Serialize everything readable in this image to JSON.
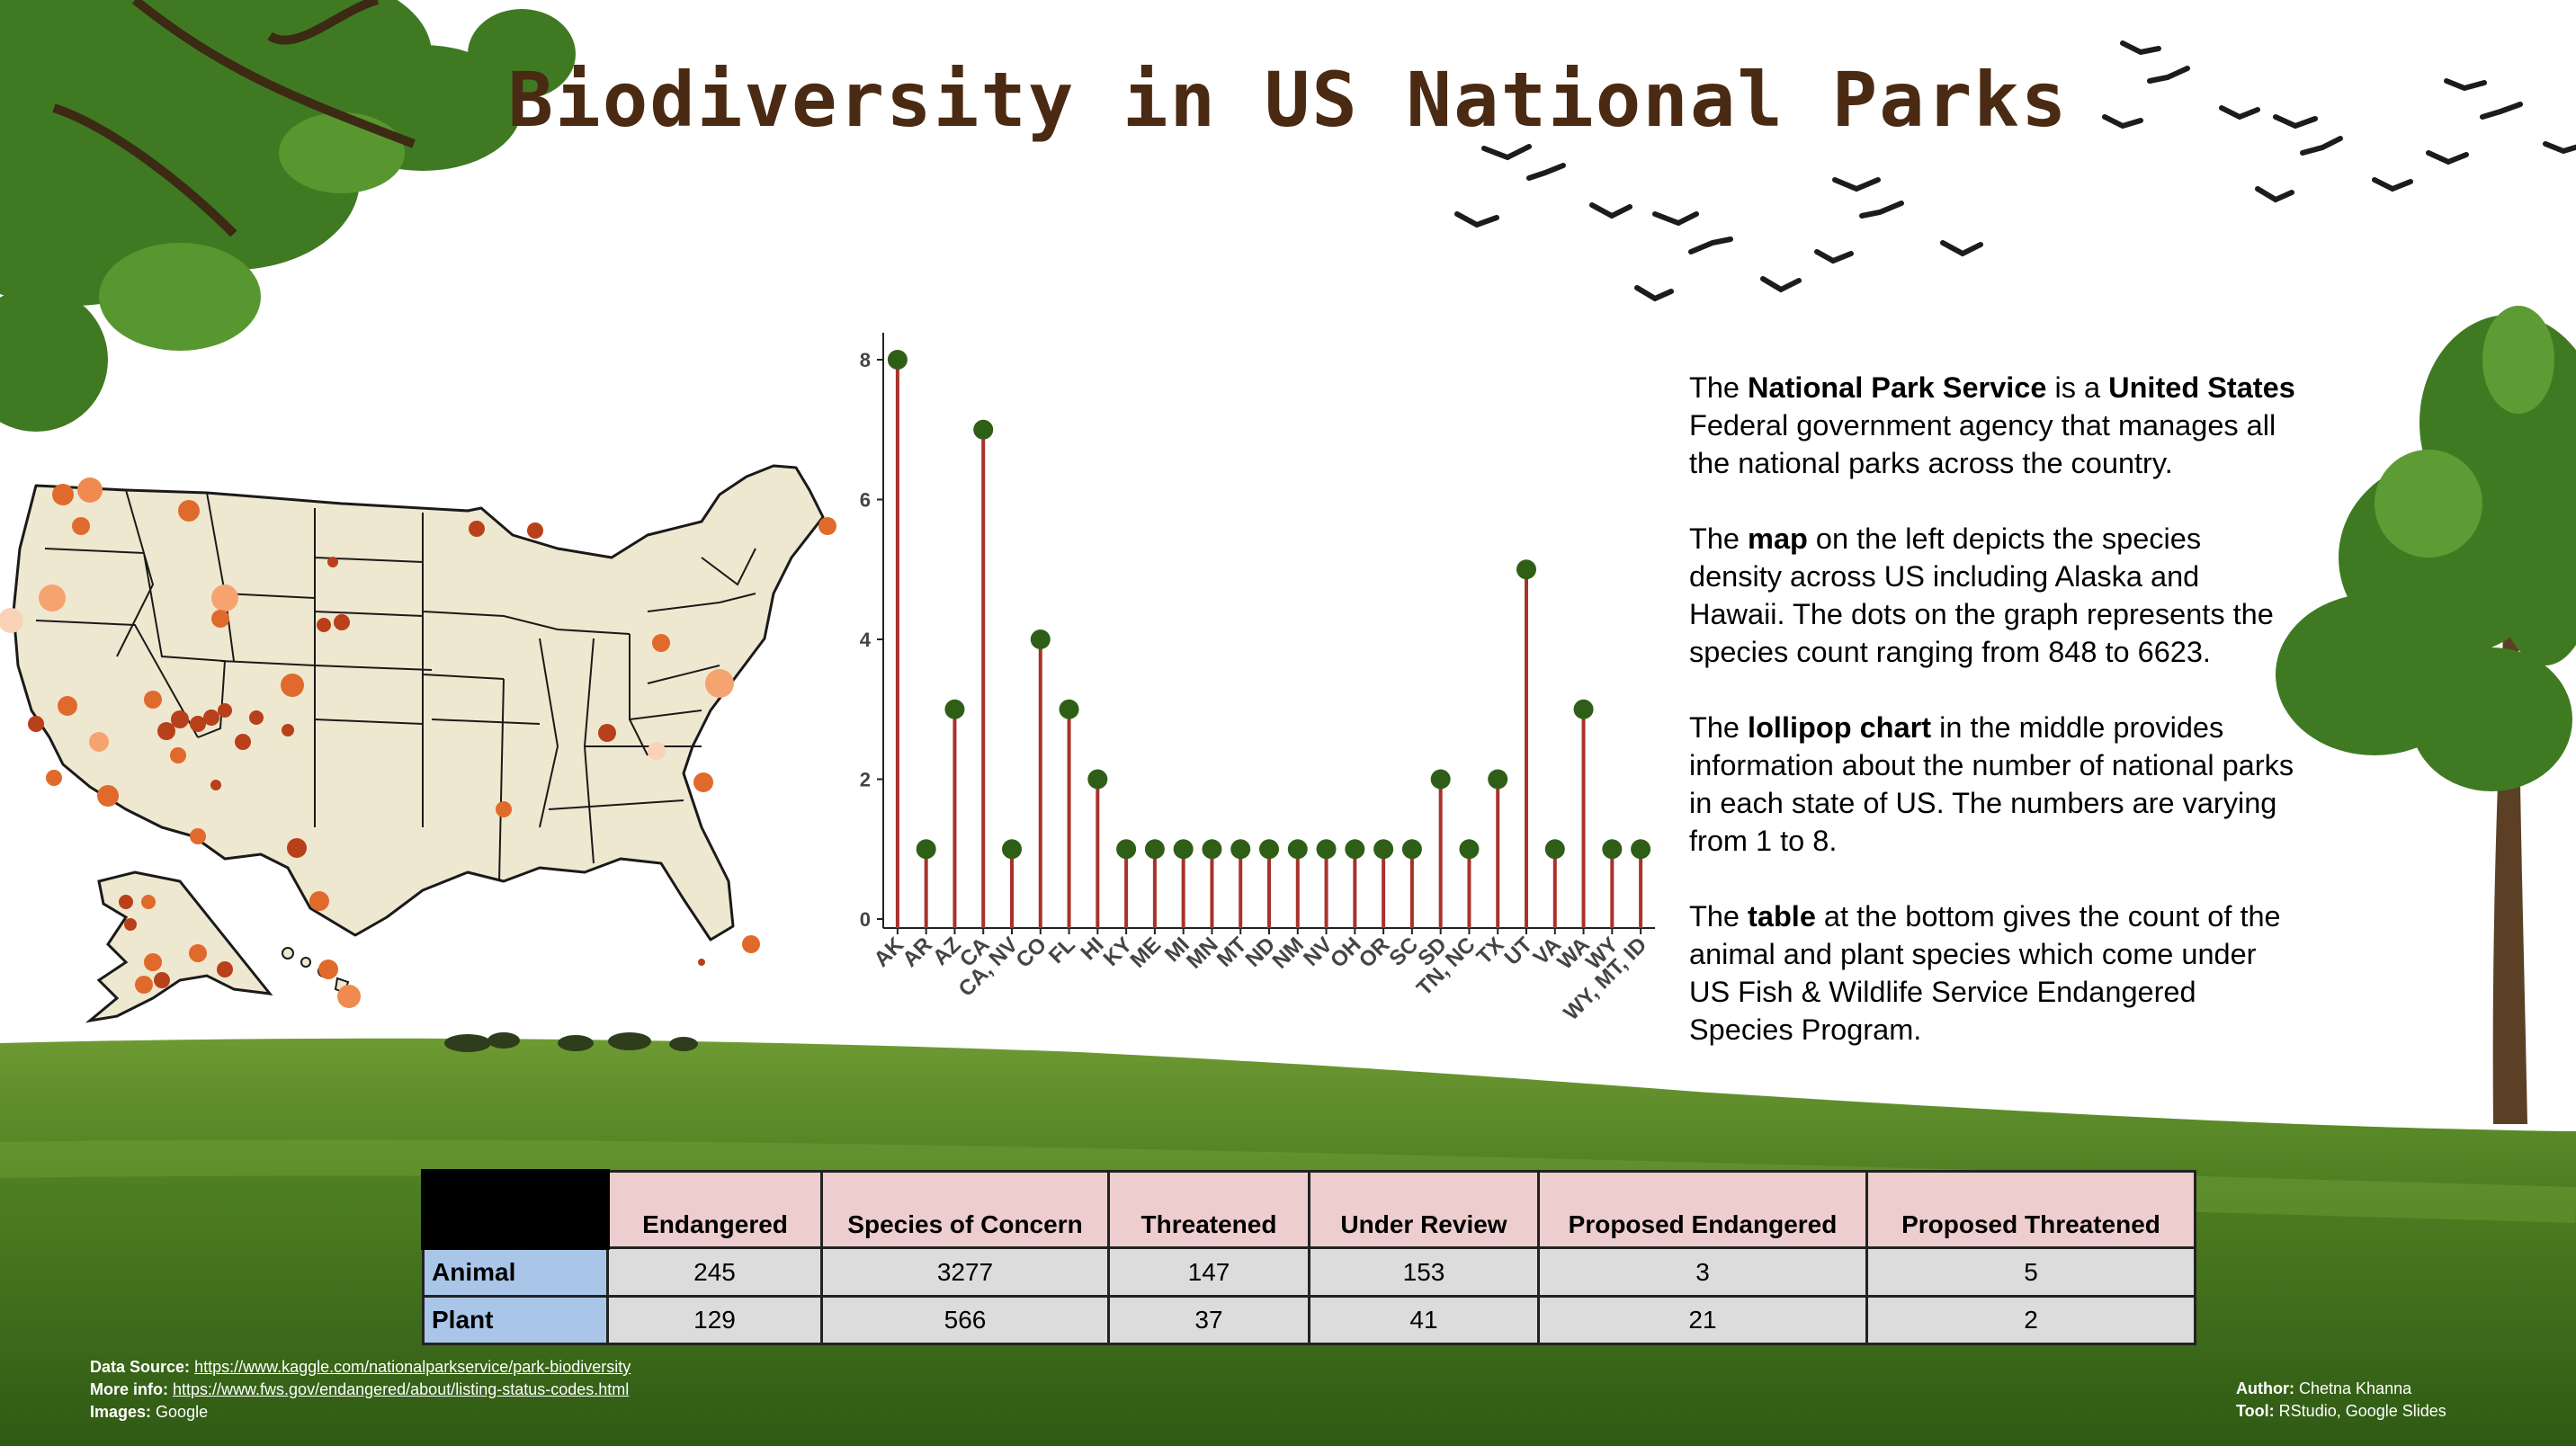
{
  "title": "Biodiversity in US National Parks",
  "description": {
    "p1": {
      "t1": "The ",
      "b1": "National Park Service",
      "t2": " is a ",
      "b2": "United States",
      "t3": " Federal government agency that manages all the national parks across the country."
    },
    "p2": {
      "t1": "The ",
      "b1": "map",
      "t2": " on the left depicts the species density across US including Alaska and Hawaii. The dots on the graph represents the species count ranging from 848 to 6623."
    },
    "p3": {
      "t1": "The ",
      "b1": "lollipop chart",
      "t2": " in the middle provides information about the number of national parks in each state of US. The numbers are varying from 1 to 8."
    },
    "p4": {
      "t1": "The ",
      "b1": "table",
      "t2": " at the bottom gives the count of the animal and plant species which come under US Fish & Wildlife Service Endangered Species Program."
    }
  },
  "chart_data": {
    "type": "lollipop",
    "categories": [
      "AK",
      "AR",
      "AZ",
      "CA",
      "CA, NV",
      "CO",
      "FL",
      "HI",
      "KY",
      "ME",
      "MI",
      "MN",
      "MT",
      "ND",
      "NM",
      "NV",
      "OH",
      "OR",
      "SC",
      "SD",
      "TN, NC",
      "TX",
      "UT",
      "VA",
      "WA",
      "WY",
      "WY, MT, ID"
    ],
    "values": [
      8,
      1,
      3,
      7,
      1,
      4,
      3,
      2,
      1,
      1,
      1,
      1,
      1,
      1,
      1,
      1,
      1,
      1,
      1,
      2,
      1,
      2,
      5,
      1,
      3,
      1,
      1
    ],
    "ylim": [
      0,
      8
    ],
    "yticks": [
      0,
      2,
      4,
      6,
      8
    ],
    "xlabel": "",
    "ylabel": "",
    "colors": {
      "stem": "#a8322b",
      "dot": "#2f5f17"
    }
  },
  "table": {
    "headers": [
      "Endangered",
      "Species of Concern",
      "Threatened",
      "Under Review",
      "Proposed Endangered",
      "Proposed Threatened"
    ],
    "rows": [
      {
        "label": "Animal",
        "values": [
          "245",
          "3277",
          "147",
          "153",
          "3",
          "5"
        ]
      },
      {
        "label": "Plant",
        "values": [
          "129",
          "566",
          "37",
          "41",
          "21",
          "2"
        ]
      }
    ]
  },
  "footer": {
    "source_label": "Data Source:",
    "source_url": "https://www.kaggle.com/nationalparkservice/park-biodiversity",
    "more_label": "More info:",
    "more_url": "https://www.fws.gov/endangered/about/listing-status-codes.html",
    "images_label": "Images:",
    "images_value": "Google",
    "author_label": "Author:",
    "author_value": "Chetna Khanna",
    "tool_label": "Tool:",
    "tool_value": "RStudio, Google Slides"
  },
  "map_colors": {
    "land": "#efe8d0",
    "dot_dark": "#b8401a",
    "dot_mid": "#e06a2c",
    "dot_light": "#f5a470"
  }
}
